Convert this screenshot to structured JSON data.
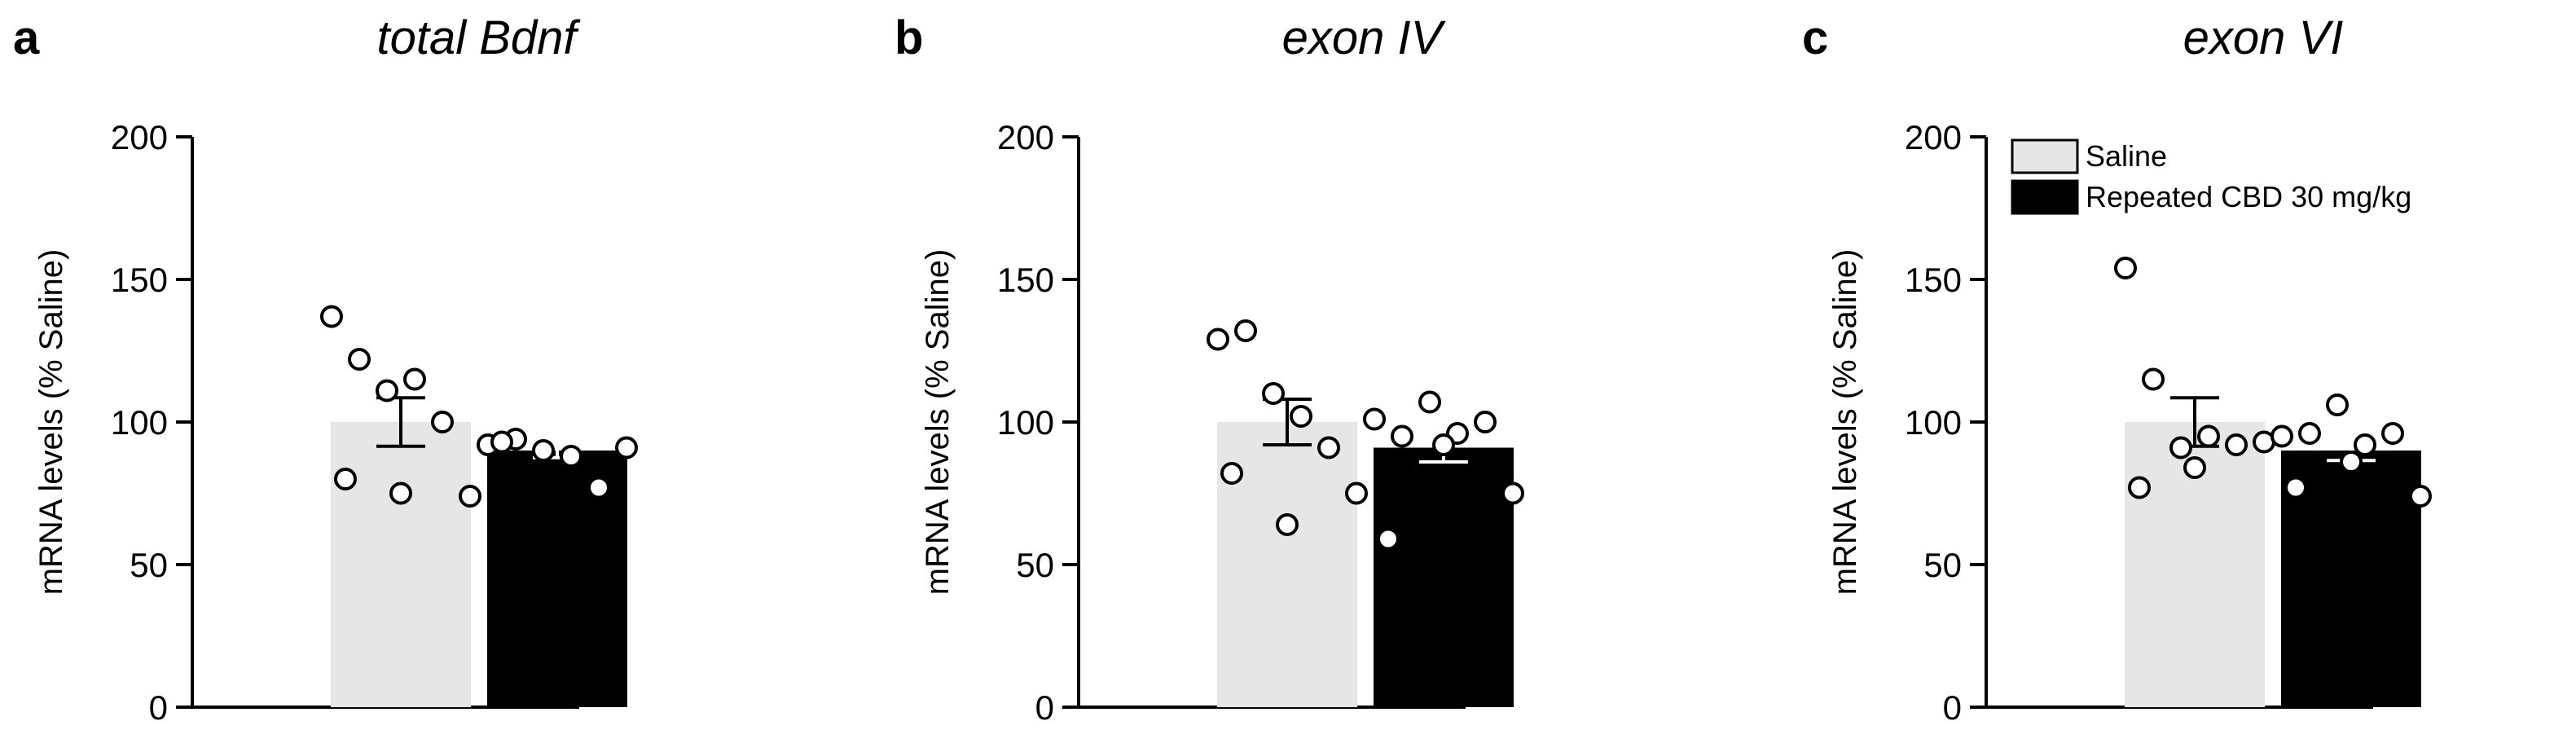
{
  "colors": {
    "saline": "#e6e6e6",
    "cbd": "#000000",
    "axis": "#000000"
  },
  "legend": [
    {
      "label": "Saline",
      "color": "#e6e6e6"
    },
    {
      "label": "Repeated CBD 30 mg/kg",
      "color": "#000000"
    }
  ],
  "chart_data": [
    {
      "type": "bar",
      "panel": "a",
      "title": "total Bdnf",
      "ylabel": "mRNA levels (% Saline)",
      "ylim": [
        0,
        200
      ],
      "yticks": [
        0,
        50,
        100,
        150,
        200
      ],
      "series": [
        {
          "name": "Saline",
          "mean": 100,
          "sem": 8.5,
          "points": [
            137,
            122,
            111,
            115,
            100,
            74,
            80,
            75
          ]
        },
        {
          "name": "Repeated CBD 30 mg/kg",
          "mean": 90,
          "sem": 2.5,
          "points": [
            92,
            94,
            90,
            88,
            77,
            91,
            93
          ]
        }
      ]
    },
    {
      "type": "bar",
      "panel": "b",
      "title": "exon IV",
      "ylabel": "mRNA levels (% Saline)",
      "ylim": [
        0,
        200
      ],
      "yticks": [
        0,
        50,
        100,
        150,
        200
      ],
      "series": [
        {
          "name": "Saline",
          "mean": 100,
          "sem": 8,
          "points": [
            129,
            132,
            110,
            102,
            91,
            75,
            82,
            64
          ]
        },
        {
          "name": "Repeated CBD 30 mg/kg",
          "mean": 91,
          "sem": 5,
          "points": [
            101,
            95,
            107,
            96,
            100,
            75,
            59,
            92
          ]
        }
      ]
    },
    {
      "type": "bar",
      "panel": "c",
      "title": "exon VI",
      "ylabel": "mRNA levels (% Saline)",
      "ylim": [
        0,
        200
      ],
      "yticks": [
        0,
        50,
        100,
        150,
        200
      ],
      "legend_position": "top-right",
      "series": [
        {
          "name": "Saline",
          "mean": 100,
          "sem": 8.5,
          "points": [
            154,
            115,
            91,
            95,
            92,
            93,
            77,
            84
          ]
        },
        {
          "name": "Repeated CBD 30 mg/kg",
          "mean": 90,
          "sem": 3.5,
          "points": [
            95,
            96,
            106,
            92,
            96,
            74,
            77,
            86
          ]
        }
      ]
    }
  ]
}
